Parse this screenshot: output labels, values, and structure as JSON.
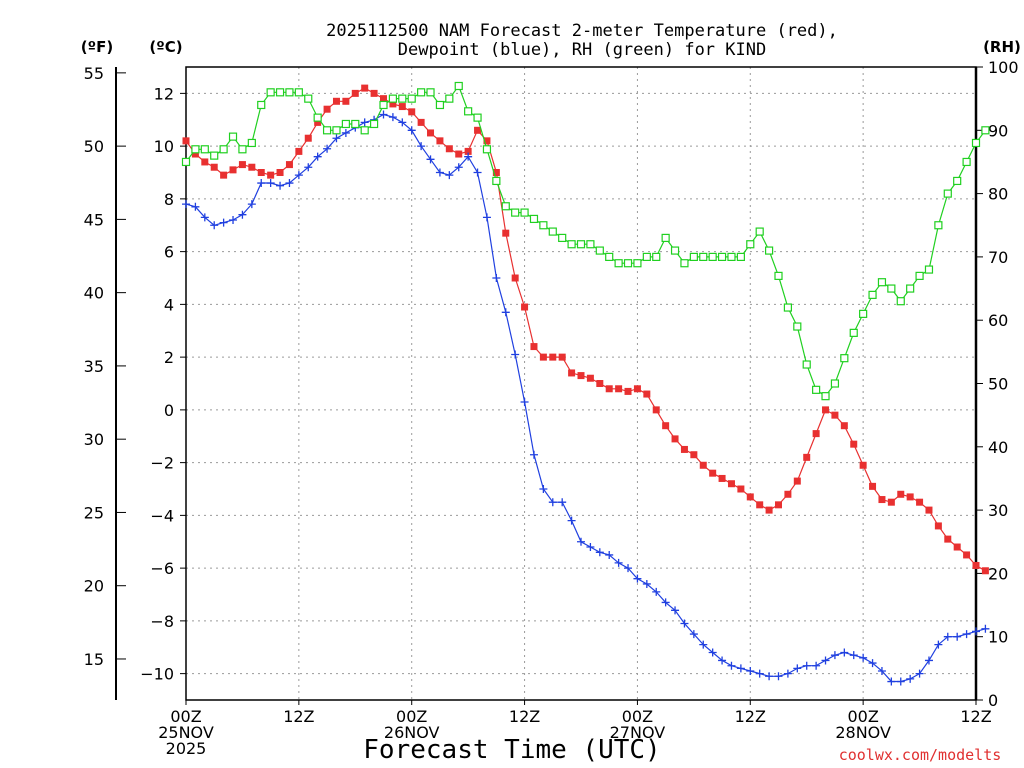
{
  "chart_data": {
    "type": "line",
    "title": [
      "2025112500 NAM Forecast 2-meter Temperature (red),",
      "Dewpoint (blue), RH (green) for KIND"
    ],
    "xlabel": "Forecast Time (UTC)",
    "credit": "coolwx.com/modelts",
    "x_unit": "forecast hour",
    "xlim": [
      0,
      84
    ],
    "x_ticks": [
      {
        "h": 0,
        "label": [
          "00Z",
          "25NOV",
          "2025"
        ]
      },
      {
        "h": 12,
        "label": [
          "12Z"
        ]
      },
      {
        "h": 24,
        "label": [
          "00Z",
          "26NOV"
        ]
      },
      {
        "h": 36,
        "label": [
          "12Z"
        ]
      },
      {
        "h": 48,
        "label": [
          "00Z",
          "27NOV"
        ]
      },
      {
        "h": 60,
        "label": [
          "12Z"
        ]
      },
      {
        "h": 72,
        "label": [
          "00Z",
          "28NOV"
        ]
      },
      {
        "h": 84,
        "label": [
          "12Z"
        ]
      }
    ],
    "axes": {
      "celsius": {
        "unit_label": "(ºC)",
        "ylim": [
          -11,
          13
        ],
        "ticks": [
          -10,
          -8,
          -6,
          -4,
          -2,
          0,
          2,
          4,
          6,
          8,
          10,
          12
        ]
      },
      "fahrenheit": {
        "unit_label": "(ºF)",
        "ticks": [
          15,
          20,
          25,
          30,
          35,
          40,
          45,
          50,
          55
        ]
      },
      "rh": {
        "unit_label": "(RH)",
        "ylim": [
          0,
          100
        ],
        "ticks": [
          0,
          10,
          20,
          30,
          40,
          50,
          60,
          70,
          80,
          90,
          100
        ]
      }
    },
    "series": [
      {
        "name": "Temperature",
        "unit": "C",
        "axis": "celsius",
        "color": "#e83030",
        "marker": "filled-square",
        "values": [
          10.2,
          9.7,
          9.4,
          9.2,
          8.9,
          9.1,
          9.3,
          9.2,
          9.0,
          8.9,
          9.0,
          9.3,
          9.8,
          10.3,
          10.9,
          11.4,
          11.7,
          11.7,
          12.0,
          12.2,
          12.0,
          11.8,
          11.6,
          11.5,
          11.3,
          10.9,
          10.5,
          10.2,
          9.9,
          9.7,
          9.8,
          10.6,
          10.2,
          9.0,
          6.7,
          5.0,
          3.9,
          2.4,
          2.0,
          2.0,
          2.0,
          1.4,
          1.3,
          1.2,
          1.0,
          0.8,
          0.8,
          0.7,
          0.8,
          0.6,
          0.0,
          -0.6,
          -1.1,
          -1.5,
          -1.7,
          -2.1,
          -2.4,
          -2.6,
          -2.8,
          -3.0,
          -3.3,
          -3.6,
          -3.8,
          -3.6,
          -3.2,
          -2.7,
          -1.8,
          -0.9,
          0.0,
          -0.2,
          -0.6,
          -1.3,
          -2.1,
          -2.9,
          -3.4,
          -3.5,
          -3.2,
          -3.3,
          -3.5,
          -3.8,
          -4.4,
          -4.9,
          -5.2,
          -5.5,
          -5.9,
          -6.1
        ]
      },
      {
        "name": "Dewpoint",
        "unit": "C",
        "axis": "celsius",
        "color": "#2040e0",
        "marker": "plus",
        "values": [
          7.8,
          7.7,
          7.3,
          7.0,
          7.1,
          7.2,
          7.4,
          7.8,
          8.6,
          8.6,
          8.5,
          8.6,
          8.9,
          9.2,
          9.6,
          9.9,
          10.3,
          10.5,
          10.7,
          10.9,
          11.0,
          11.2,
          11.1,
          10.9,
          10.6,
          10.0,
          9.5,
          9.0,
          8.9,
          9.2,
          9.6,
          9.0,
          7.3,
          5.0,
          3.7,
          2.1,
          0.3,
          -1.7,
          -3.0,
          -3.5,
          -3.5,
          -4.2,
          -5.0,
          -5.2,
          -5.4,
          -5.5,
          -5.8,
          -6.0,
          -6.4,
          -6.6,
          -6.9,
          -7.3,
          -7.6,
          -8.1,
          -8.5,
          -8.9,
          -9.2,
          -9.5,
          -9.7,
          -9.8,
          -9.9,
          -10.0,
          -10.1,
          -10.1,
          -10.0,
          -9.8,
          -9.7,
          -9.7,
          -9.5,
          -9.3,
          -9.2,
          -9.3,
          -9.4,
          -9.6,
          -9.9,
          -10.3,
          -10.3,
          -10.2,
          -10.0,
          -9.5,
          -8.9,
          -8.6,
          -8.6,
          -8.5,
          -8.4,
          -8.3
        ]
      },
      {
        "name": "Relative Humidity",
        "unit": "%",
        "axis": "rh",
        "color": "#20d020",
        "marker": "open-square",
        "values": [
          85,
          87,
          87,
          86,
          87,
          89,
          87,
          88,
          94,
          96,
          96,
          96,
          96,
          95,
          92,
          90,
          90,
          91,
          91,
          90,
          91,
          94,
          95,
          95,
          95,
          96,
          96,
          94,
          95,
          97,
          93,
          92,
          87,
          82,
          78,
          77,
          77,
          76,
          75,
          74,
          73,
          72,
          72,
          72,
          71,
          70,
          69,
          69,
          69,
          70,
          70,
          73,
          71,
          69,
          70,
          70,
          70,
          70,
          70,
          70,
          72,
          74,
          71,
          67,
          62,
          59,
          53,
          49,
          48,
          50,
          54,
          58,
          61,
          64,
          66,
          65,
          63,
          65,
          67,
          68,
          75,
          80,
          82,
          85,
          88,
          90
        ]
      }
    ]
  }
}
